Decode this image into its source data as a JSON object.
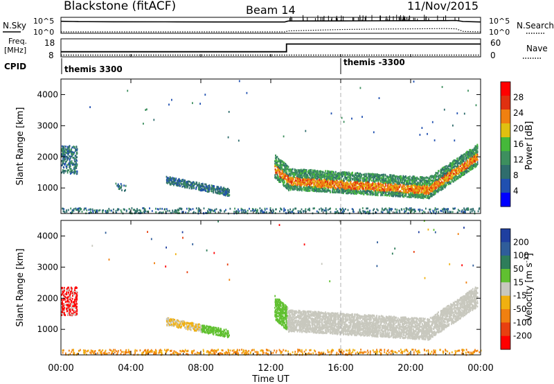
{
  "header": {
    "station": "Blackstone (fitACF)",
    "beam": "Beam 14",
    "date": "11/Nov/2015"
  },
  "colors": {
    "power": [
      "#0000ff",
      "#2050b0",
      "#2f6d6d",
      "#3d8f5e",
      "#45b83a",
      "#e0c010",
      "#f08010",
      "#e03010",
      "#ff0000"
    ],
    "velocity": [
      "#ff0000",
      "#e84010",
      "#f08010",
      "#f0b010",
      "#c8c8be",
      "#60c030",
      "#2e7d5a",
      "#2f5d9a",
      "#1f3fa0"
    ],
    "ground_scatter": "#c8c8be"
  },
  "panels": {
    "sky_labels": {
      "nsky": "N.Sky",
      "nsearch": "N.Search",
      "ytick_top": "10^5",
      "ytick_bottom": "10^0"
    },
    "freq_labels": {
      "freq_line1": "Freq.",
      "freq_line2": "[MHz]",
      "nave": "Nave",
      "freq_ticks": [
        "18",
        "8"
      ],
      "nave_ticks": [
        "60",
        "0"
      ]
    },
    "cpid": {
      "label": "CPID",
      "segments": [
        "themis 3300",
        "themis -3300"
      ],
      "switch_hour": 16.0
    }
  },
  "axes": {
    "xlabel": "Time UT",
    "xticks": [
      "00:00",
      "04:00",
      "08:00",
      "12:00",
      "16:00",
      "20:00",
      "00:00"
    ],
    "xrange_hours": [
      0,
      24
    ],
    "ylabel_top": "Slant Range [km]",
    "ylabel_bottom": "Slant Range [km]",
    "yticks": [
      "4000",
      "3000",
      "2000",
      "1000"
    ],
    "yrange_km": [
      180,
      4500
    ]
  },
  "colorbars": {
    "power": {
      "label": "Power [dB]",
      "ticks": [
        "28",
        "24",
        "20",
        "16",
        "12",
        "8",
        "4"
      ]
    },
    "velocity": {
      "label_main": "Velocity [m s",
      "label_sup": "-1",
      "label_end": "]",
      "ticks": [
        "200",
        "100",
        "50",
        "15",
        "-15",
        "-50",
        "-100",
        "-200"
      ]
    }
  },
  "chart_data": [
    {
      "type": "line",
      "title": "N.Sky / N.Search",
      "x_hours": [
        0,
        0.7,
        1,
        3,
        6,
        9,
        12,
        12.8,
        13,
        16,
        18,
        20,
        22,
        22.6,
        23,
        24
      ],
      "series": [
        {
          "name": "N.Sky",
          "values_log10": [
            4.8,
            4.7,
            4.65,
            4.6,
            4.55,
            4.5,
            4.5,
            4.5,
            4.9,
            4.95,
            5.0,
            5.05,
            5.1,
            5.15,
            4.7,
            4.5
          ]
        },
        {
          "name": "N.Search",
          "values_log10": [
            0.3,
            0.3,
            0.3,
            0.3,
            0.3,
            0.3,
            0.3,
            0.3,
            0.7,
            1.3,
            1.5,
            1.6,
            1.7,
            1.6,
            0.5,
            0.3
          ]
        }
      ],
      "ylim_log10": [
        0,
        5
      ]
    },
    {
      "type": "line",
      "title": "Freq / Nave",
      "x_hours": [
        0,
        12.9,
        12.9,
        24
      ],
      "series": [
        {
          "name": "Freq.",
          "unit": "MHz",
          "values": [
            10.4,
            10.4,
            15.5,
            15.5
          ]
        },
        {
          "name": "Nave",
          "values": [
            0,
            0,
            0,
            0
          ]
        }
      ],
      "ylim_freq": [
        8,
        18
      ],
      "ylim_nave": [
        0,
        60
      ]
    },
    {
      "type": "heatmap",
      "title": "Power [dB]",
      "xlabel": "Time UT",
      "ylabel": "Slant Range [km]",
      "xlim_hours": [
        0,
        24
      ],
      "ylim_km": [
        180,
        4500
      ],
      "legend": "colorbar right",
      "scale_dB": [
        0,
        32
      ],
      "features": [
        {
          "name": "near-range echoes",
          "t_hours": [
            0,
            24
          ],
          "range_km": [
            180,
            350
          ],
          "typical_dB": 8
        },
        {
          "name": "early scatter",
          "t_hours": [
            0,
            0.9
          ],
          "range_km": [
            1450,
            2350
          ],
          "typical_dB": 8
        },
        {
          "name": "morning patch",
          "t_hours": [
            3.1,
            3.7
          ],
          "range_km": [
            900,
            1150
          ],
          "typical_dB": 6
        },
        {
          "name": "morning band",
          "t_hours": [
            6,
            9.6
          ],
          "range_km": [
            850,
            1350
          ],
          "typical_dB": 6
        },
        {
          "name": "night band",
          "t_hours": [
            12.2,
            23.8
          ],
          "range_km": [
            700,
            2200
          ],
          "typical_dB": 20
        }
      ]
    },
    {
      "type": "heatmap",
      "title": "Velocity [m s-1]",
      "xlabel": "Time UT",
      "ylabel": "Slant Range [km]",
      "xlim_hours": [
        0,
        24
      ],
      "ylim_km": [
        180,
        4500
      ],
      "legend": "colorbar right",
      "scale_ms": [
        -250,
        250
      ],
      "features": [
        {
          "name": "near-range echoes",
          "t_hours": [
            0,
            24
          ],
          "range_km": [
            180,
            350
          ],
          "typical_ms": -50
        },
        {
          "name": "early scatter",
          "t_hours": [
            0,
            0.9
          ],
          "range_km": [
            1450,
            2350
          ],
          "typical_ms": -200
        },
        {
          "name": "morning band",
          "t_hours": [
            6,
            9.6
          ],
          "range_km": [
            850,
            1350
          ],
          "typical_ms": -50
        },
        {
          "name": "ground scatter band",
          "t_hours": [
            12.2,
            23.8
          ],
          "range_km": [
            700,
            2200
          ],
          "typical_ms": 0
        }
      ]
    }
  ]
}
